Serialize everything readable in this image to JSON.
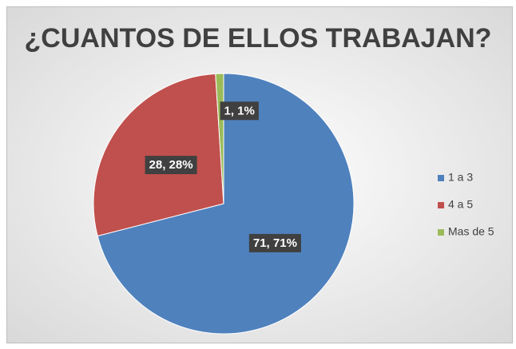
{
  "chart_data": {
    "type": "pie",
    "title": "¿CUANTOS DE ELLOS TRABAJAN?",
    "categories": [
      "1 a 3",
      "4 a 5",
      "Mas de 5"
    ],
    "values": [
      71,
      28,
      1
    ],
    "value_labels": [
      "71, 71%",
      "28, 28%",
      "1, 1%"
    ],
    "colors": [
      "#4f81bd",
      "#c0504d",
      "#9bbb59"
    ],
    "legend": "right"
  }
}
